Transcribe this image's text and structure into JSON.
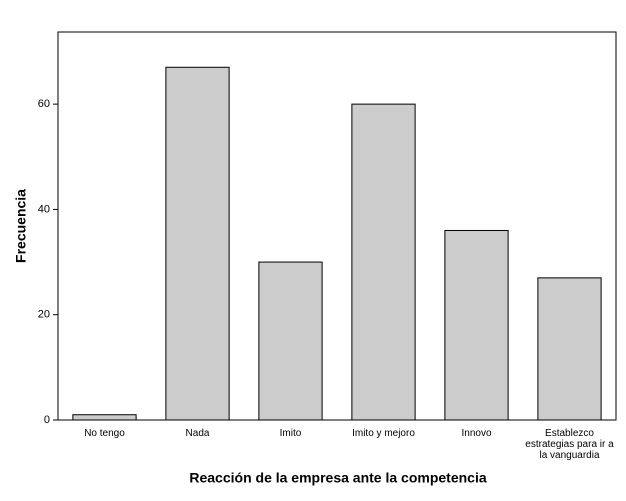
{
  "chart_data": {
    "type": "bar",
    "x_label": "Reacción de la empresa ante la competencia",
    "y_label": "Frecuencia",
    "categories": [
      "No tengo",
      "Nada",
      "Imito",
      "Imito y mejoro",
      "Innovo",
      "Establezco estrategias para ir a la vanguardia"
    ],
    "values": [
      1,
      67,
      30,
      60,
      36,
      27
    ],
    "color": "#cccccc",
    "ylim": [
      0,
      73.7
    ],
    "yticks": [
      0,
      20,
      40,
      60
    ]
  }
}
